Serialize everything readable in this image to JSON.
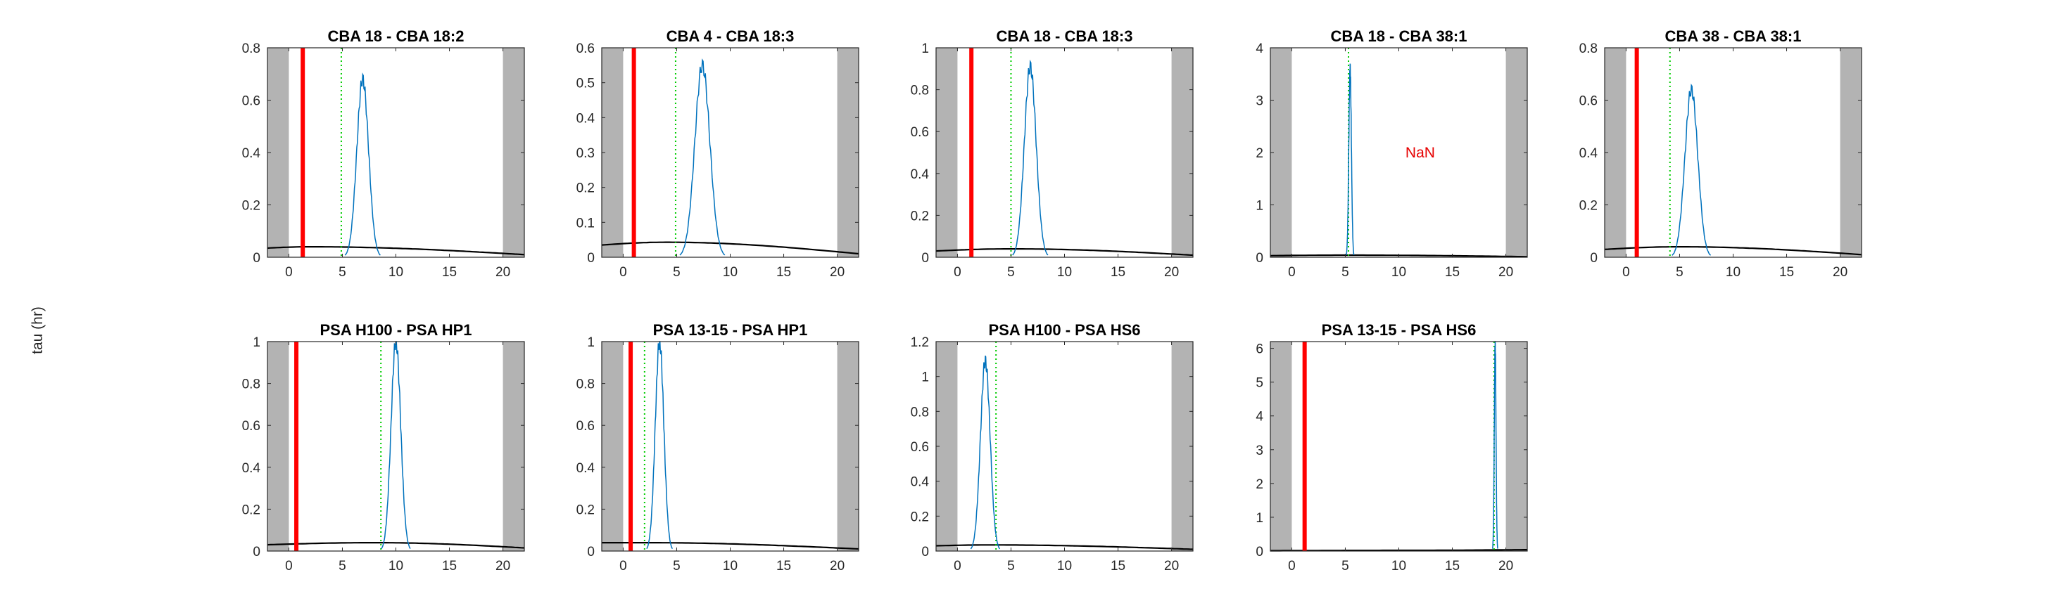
{
  "figure": {
    "ylabel": "tau (hr)"
  },
  "chart_data": [
    {
      "type": "line",
      "title": "CBA 18 - CBA 18:2",
      "xlim": [
        -2,
        22
      ],
      "ylim": [
        0,
        0.8
      ],
      "xticks": [
        0,
        5,
        10,
        15,
        20
      ],
      "yticks": [
        0,
        0.2,
        0.4,
        0.6,
        0.8
      ],
      "shaded_x": [
        [
          -2,
          0
        ],
        [
          20,
          22
        ]
      ],
      "red_line_x": 1.3,
      "green_line_x": 4.9,
      "peak": {
        "center": 6.9,
        "height": 0.68,
        "width": 0.55
      },
      "baseline": {
        "start": 0.035,
        "peak": 0.04,
        "peak_x": 2,
        "end": 0.01
      },
      "annotation": ""
    },
    {
      "type": "line",
      "title": "CBA 4 - CBA 18:3",
      "xlim": [
        -2,
        22
      ],
      "ylim": [
        0,
        0.6
      ],
      "xticks": [
        0,
        5,
        10,
        15,
        20
      ],
      "yticks": [
        0,
        0.1,
        0.2,
        0.3,
        0.4,
        0.5,
        0.6
      ],
      "shaded_x": [
        [
          -2,
          0
        ],
        [
          20,
          22
        ]
      ],
      "red_line_x": 1.0,
      "green_line_x": 4.9,
      "peak": {
        "center": 7.4,
        "height": 0.55,
        "width": 0.7
      },
      "baseline": {
        "start": 0.035,
        "peak": 0.043,
        "peak_x": 4,
        "end": 0.01
      },
      "annotation": ""
    },
    {
      "type": "line",
      "title": "CBA 18 - CBA 18:3",
      "xlim": [
        -2,
        22
      ],
      "ylim": [
        0,
        1
      ],
      "xticks": [
        0,
        5,
        10,
        15,
        20
      ],
      "yticks": [
        0,
        0.2,
        0.4,
        0.6,
        0.8,
        1
      ],
      "shaded_x": [
        [
          -2,
          0
        ],
        [
          20,
          22
        ]
      ],
      "red_line_x": 1.3,
      "green_line_x": 5.0,
      "peak": {
        "center": 6.8,
        "height": 0.91,
        "width": 0.55
      },
      "baseline": {
        "start": 0.03,
        "peak": 0.04,
        "peak_x": 5,
        "end": 0.01
      },
      "annotation": ""
    },
    {
      "type": "line",
      "title": "CBA 18 - CBA 38:1",
      "xlim": [
        -2,
        22
      ],
      "ylim": [
        0,
        4
      ],
      "xticks": [
        0,
        5,
        10,
        15,
        20
      ],
      "yticks": [
        0,
        1,
        2,
        3,
        4
      ],
      "shaded_x": [
        [
          -2,
          0
        ],
        [
          20,
          22
        ]
      ],
      "red_line_x": null,
      "green_line_x": 5.3,
      "peak": {
        "center": 5.45,
        "height": 3.6,
        "width": 0.12
      },
      "baseline": {
        "start": 0.03,
        "peak": 0.04,
        "peak_x": 5,
        "end": 0.01
      },
      "annotation": "NaN",
      "annotation_at": [
        12,
        2
      ]
    },
    {
      "type": "line",
      "title": "CBA 38 - CBA 38:1",
      "xlim": [
        -2,
        22
      ],
      "ylim": [
        0,
        0.8
      ],
      "xticks": [
        0,
        5,
        10,
        15,
        20
      ],
      "yticks": [
        0,
        0.2,
        0.4,
        0.6,
        0.8
      ],
      "shaded_x": [
        [
          -2,
          0
        ],
        [
          20,
          22
        ]
      ],
      "red_line_x": 1.0,
      "green_line_x": 4.1,
      "peak": {
        "center": 6.1,
        "height": 0.64,
        "width": 0.6
      },
      "baseline": {
        "start": 0.03,
        "peak": 0.04,
        "peak_x": 5,
        "end": 0.01
      },
      "annotation": ""
    },
    {
      "type": "line",
      "title": "PSA H100 - PSA HP1",
      "xlim": [
        -2,
        22
      ],
      "ylim": [
        0,
        1
      ],
      "xticks": [
        0,
        5,
        10,
        15,
        20
      ],
      "yticks": [
        0,
        0.2,
        0.4,
        0.6,
        0.8,
        1
      ],
      "shaded_x": [
        [
          -2,
          0
        ],
        [
          20,
          22
        ]
      ],
      "red_line_x": 0.7,
      "green_line_x": 8.6,
      "peak": {
        "center": 10.0,
        "height": 1.0,
        "width": 0.45
      },
      "baseline": {
        "start": 0.03,
        "peak": 0.04,
        "peak_x": 8,
        "end": 0.015
      },
      "annotation": ""
    },
    {
      "type": "line",
      "title": "PSA 13-15 - PSA HP1",
      "xlim": [
        -2,
        22
      ],
      "ylim": [
        0,
        1
      ],
      "xticks": [
        0,
        5,
        10,
        15,
        20
      ],
      "yticks": [
        0,
        0.2,
        0.4,
        0.6,
        0.8,
        1
      ],
      "shaded_x": [
        [
          -2,
          0
        ],
        [
          20,
          22
        ]
      ],
      "red_line_x": 0.7,
      "green_line_x": 2.0,
      "peak": {
        "center": 3.4,
        "height": 1.0,
        "width": 0.4
      },
      "baseline": {
        "start": 0.04,
        "peak": 0.04,
        "peak_x": 2,
        "end": 0.01
      },
      "annotation": ""
    },
    {
      "type": "line",
      "title": "PSA H100 - PSA HS6",
      "xlim": [
        -2,
        22
      ],
      "ylim": [
        0,
        1.2
      ],
      "xticks": [
        0,
        5,
        10,
        15,
        20
      ],
      "yticks": [
        0,
        0.2,
        0.4,
        0.6,
        0.8,
        1,
        1.2
      ],
      "shaded_x": [
        [
          -2,
          0
        ],
        [
          20,
          22
        ]
      ],
      "red_line_x": null,
      "green_line_x": 3.6,
      "peak": {
        "center": 2.6,
        "height": 1.09,
        "width": 0.45
      },
      "baseline": {
        "start": 0.03,
        "peak": 0.035,
        "peak_x": 3,
        "end": 0.01
      },
      "annotation": ""
    },
    {
      "type": "line",
      "title": "PSA 13-15 - PSA HS6",
      "xlim": [
        -2,
        22
      ],
      "ylim": [
        0,
        6.2
      ],
      "xticks": [
        0,
        5,
        10,
        15,
        20
      ],
      "yticks": [
        0,
        1,
        2,
        3,
        4,
        5,
        6
      ],
      "shaded_x": [
        [
          -2,
          0
        ],
        [
          20,
          22
        ]
      ],
      "red_line_x": 1.2,
      "green_line_x": 18.9,
      "peak": {
        "center": 19.0,
        "height": 6.1,
        "width": 0.08
      },
      "baseline": {
        "start": 0.01,
        "peak": 0.02,
        "peak_x": 10,
        "end": 0.04
      },
      "annotation": ""
    }
  ]
}
